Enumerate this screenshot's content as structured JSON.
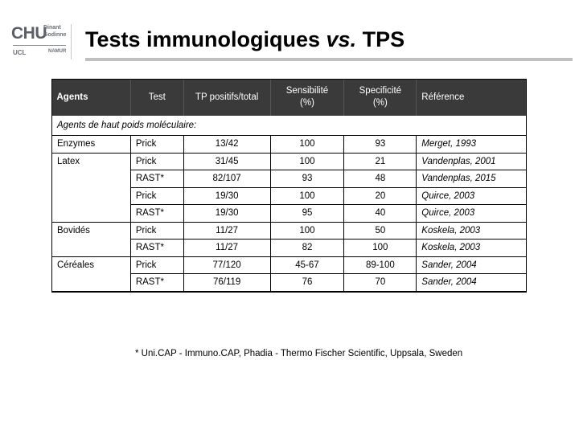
{
  "logo": {
    "chu": "CHU",
    "line1": "Dinant",
    "line2": "Godinne",
    "ucl": "UCL",
    "namur": "NAMUR"
  },
  "title": {
    "part1": "Tests immunologiques ",
    "vs": "vs.",
    "part2": " TPS"
  },
  "table": {
    "headers": {
      "agents": "Agents",
      "test": "Test",
      "tp": "TP positifs/total",
      "sens_line1": "Sensibilité",
      "sens_line2": "(%)",
      "spec_line1": "Specificité",
      "spec_line2": "(%)",
      "ref": "Référence"
    },
    "section": "Agents de haut poids moléculaire:",
    "rows": [
      {
        "agent": "Enzymes",
        "test": "Prick",
        "tp": "13/42",
        "sens": "100",
        "spec": "93",
        "ref": "Merget, 1993"
      },
      {
        "agent": "Latex",
        "test": "Prick",
        "tp": "31/45",
        "sens": "100",
        "spec": "21",
        "ref": "Vandenplas, 2001"
      },
      {
        "agent": "",
        "test": "RAST*",
        "tp": "82/107",
        "sens": "93",
        "spec": "48",
        "ref": "Vandenplas, 2015"
      },
      {
        "agent": "",
        "test": "Prick",
        "tp": "19/30",
        "sens": "100",
        "spec": "20",
        "ref": "Quirce, 2003"
      },
      {
        "agent": "",
        "test": "RAST*",
        "tp": "19/30",
        "sens": "95",
        "spec": "40",
        "ref": "Quirce, 2003"
      },
      {
        "agent": "Bovidés",
        "test": "Prick",
        "tp": "11/27",
        "sens": "100",
        "spec": "50",
        "ref": "Koskela, 2003"
      },
      {
        "agent": "",
        "test": "RAST*",
        "tp": "11/27",
        "sens": "82",
        "spec": "100",
        "ref": "Koskela, 2003"
      },
      {
        "agent": "Céréales",
        "test": "Prick",
        "tp": "77/120",
        "sens": "45-67",
        "spec": "89-100",
        "ref": "Sander, 2004"
      },
      {
        "agent": "",
        "test": "RAST*",
        "tp": "76/119",
        "sens": "76",
        "spec": "70",
        "ref": "Sander, 2004"
      }
    ]
  },
  "footnote": "* Uni.CAP - Immuno.CAP, Phadia - Thermo Fischer Scientific, Uppsala, Sweden"
}
